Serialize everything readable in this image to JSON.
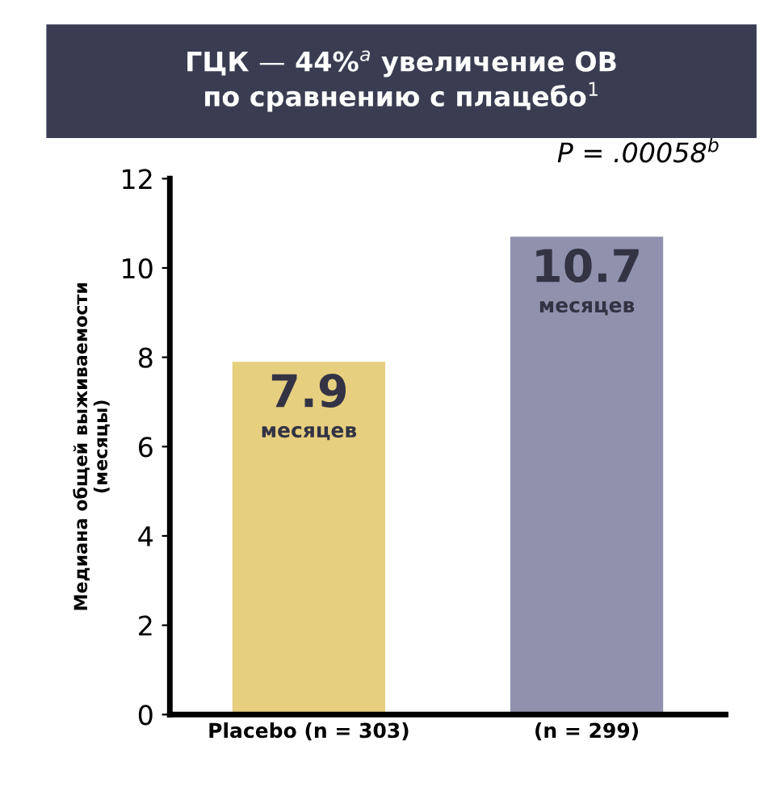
{
  "chart_data": {
    "type": "bar",
    "title": "ГЦК — 44%$^{a}$ увеличение ОВ\nпо сравнению с плацебо$^{1}$",
    "ylabel": "Медиана общей выживаемости\n(месяцы)",
    "categories": [
      "Placebo (n = 303)",
      "(n = 299)"
    ],
    "values": [
      7.9,
      10.7
    ],
    "colors": [
      "#e6cf7f",
      "#8f91ad"
    ],
    "value_labels": [
      "7.9\nмесяцев",
      "10.7\nмесяцев"
    ],
    "annotations": [
      "P = .00058$^{b}$"
    ],
    "ylim": [
      0,
      12
    ],
    "yticks": [
      0,
      2,
      4,
      6,
      8,
      10,
      12
    ],
    "grid": false,
    "legend": false
  }
}
